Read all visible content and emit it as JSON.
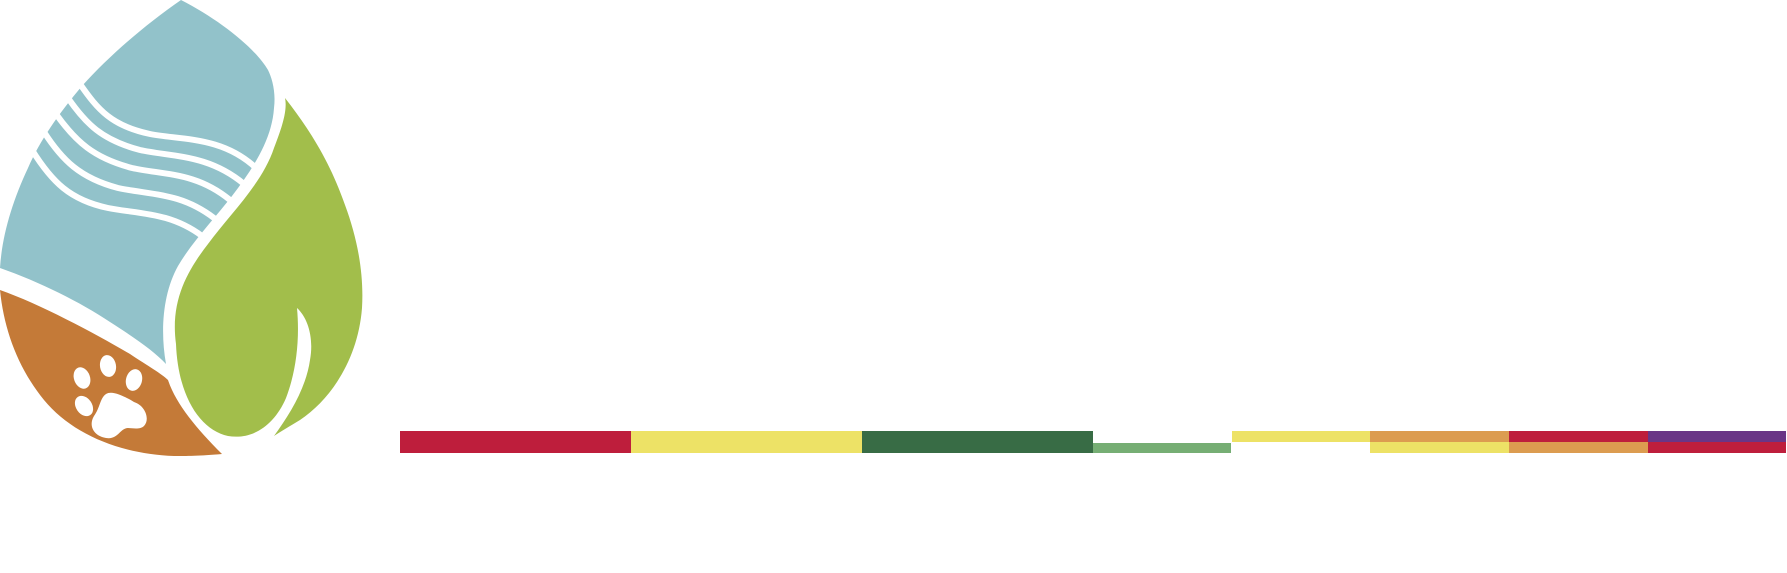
{
  "logo": {
    "icon": "water-leaf-paw-drop-logo",
    "colors": {
      "water": "#92C2CA",
      "leaf": "#A2BE4B",
      "earth": "#C47A38",
      "waves": "#FFFFFF"
    }
  },
  "stripes": {
    "colors": {
      "red": "#BE1E3C",
      "yellow": "#EDE266",
      "dark_green": "#386C45",
      "light_green": "#76AE74",
      "orange": "#DC9C50",
      "purple": "#6A3586"
    }
  }
}
